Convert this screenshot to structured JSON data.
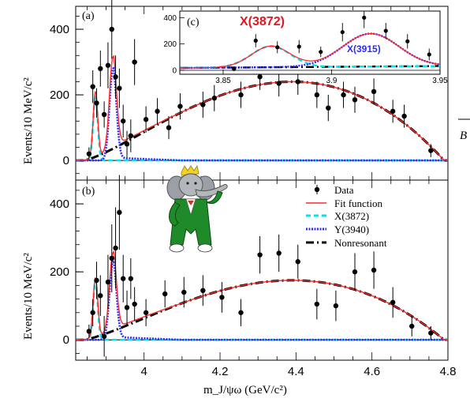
{
  "chart_data": [
    {
      "type": "scatter",
      "panel": "(a)",
      "ylabel": "Events/10 MeV/c²",
      "xlim": [
        3.82,
        4.8
      ],
      "ylim": [
        -60,
        470
      ],
      "yticks": [
        0,
        200,
        400
      ],
      "data_points": [
        {
          "x": 3.855,
          "y": 20,
          "err": 20
        },
        {
          "x": 3.865,
          "y": 225,
          "err": 50
        },
        {
          "x": 3.875,
          "y": 175,
          "err": 45
        },
        {
          "x": 3.885,
          "y": 280,
          "err": 55
        },
        {
          "x": 3.895,
          "y": 140,
          "err": 40
        },
        {
          "x": 3.905,
          "y": 290,
          "err": 70
        },
        {
          "x": 3.915,
          "y": 400,
          "err": 90
        },
        {
          "x": 3.925,
          "y": 255,
          "err": 65
        },
        {
          "x": 3.935,
          "y": 220,
          "err": 60
        },
        {
          "x": 3.945,
          "y": 120,
          "err": 50
        },
        {
          "x": 3.955,
          "y": 50,
          "err": 40
        },
        {
          "x": 3.965,
          "y": 75,
          "err": 50
        },
        {
          "x": 3.975,
          "y": 300,
          "err": 70
        },
        {
          "x": 4.005,
          "y": 125,
          "err": 40
        },
        {
          "x": 4.035,
          "y": 150,
          "err": 40
        },
        {
          "x": 4.065,
          "y": 100,
          "err": 35
        },
        {
          "x": 4.095,
          "y": 165,
          "err": 40
        },
        {
          "x": 4.155,
          "y": 170,
          "err": 40
        },
        {
          "x": 4.185,
          "y": 190,
          "err": 40
        },
        {
          "x": 4.255,
          "y": 200,
          "err": 40
        },
        {
          "x": 4.305,
          "y": 255,
          "err": 40
        },
        {
          "x": 4.355,
          "y": 235,
          "err": 40
        },
        {
          "x": 4.405,
          "y": 240,
          "err": 40
        },
        {
          "x": 4.455,
          "y": 200,
          "err": 40
        },
        {
          "x": 4.485,
          "y": 160,
          "err": 40
        },
        {
          "x": 4.525,
          "y": 200,
          "err": 40
        },
        {
          "x": 4.555,
          "y": 185,
          "err": 40
        },
        {
          "x": 4.605,
          "y": 210,
          "err": 40
        },
        {
          "x": 4.655,
          "y": 150,
          "err": 35
        },
        {
          "x": 4.685,
          "y": 135,
          "err": 35
        },
        {
          "x": 4.755,
          "y": 30,
          "err": 20
        }
      ],
      "model": {
        "nonres_start": 3.84,
        "nonres_end": 4.79,
        "nonres_peak": 240,
        "nonres_peak_x": 4.39,
        "x3872_peak": 200,
        "x3872_mass": 3.872,
        "y3940_peak": 280,
        "y3940_mass": 3.918
      },
      "inset": {
        "label": "(c)",
        "xlim": [
          3.83,
          3.95
        ],
        "ylim": [
          -30,
          450
        ],
        "xticks": [
          "3.85",
          "3.9",
          "3.95"
        ],
        "yticks": [
          0,
          200,
          400
        ],
        "annotation_1": "X(3872)",
        "annotation_2": "X(3915)",
        "data_points": [
          {
            "x": 3.855,
            "y": 10,
            "err": 10
          },
          {
            "x": 3.865,
            "y": 225,
            "err": 50
          },
          {
            "x": 3.875,
            "y": 175,
            "err": 45
          },
          {
            "x": 3.885,
            "y": 180,
            "err": 50
          },
          {
            "x": 3.895,
            "y": 140,
            "err": 40
          },
          {
            "x": 3.905,
            "y": 290,
            "err": 70
          },
          {
            "x": 3.915,
            "y": 400,
            "err": 80
          },
          {
            "x": 3.925,
            "y": 300,
            "err": 60
          },
          {
            "x": 3.935,
            "y": 220,
            "err": 55
          },
          {
            "x": 3.945,
            "y": 120,
            "err": 45
          }
        ]
      }
    },
    {
      "type": "scatter",
      "panel": "(b)",
      "ylabel": "Events/10 MeV/c²",
      "xlabel": "m_J/ψω (GeV/c²)",
      "xlim": [
        3.82,
        4.8
      ],
      "ylim": [
        -60,
        470
      ],
      "xticks": [
        "4",
        "4.2",
        "4.4",
        "4.6",
        "4.8"
      ],
      "yticks": [
        0,
        200,
        400
      ],
      "legend": [
        "Data",
        "Fit function",
        "X(3872)",
        "Y(3940)",
        "Nonresonant"
      ],
      "legend_position": "top-right",
      "data_points": [
        {
          "x": 3.855,
          "y": 25,
          "err": 20
        },
        {
          "x": 3.865,
          "y": 80,
          "err": 40
        },
        {
          "x": 3.875,
          "y": 175,
          "err": 55
        },
        {
          "x": 3.885,
          "y": 130,
          "err": 60
        },
        {
          "x": 3.895,
          "y": 10,
          "err": 60
        },
        {
          "x": 3.905,
          "y": 170,
          "err": 80
        },
        {
          "x": 3.915,
          "y": 240,
          "err": 100
        },
        {
          "x": 3.925,
          "y": 270,
          "err": 120
        },
        {
          "x": 3.935,
          "y": 375,
          "err": 110
        },
        {
          "x": 3.945,
          "y": 180,
          "err": 70
        },
        {
          "x": 3.955,
          "y": 95,
          "err": 50
        },
        {
          "x": 3.965,
          "y": 180,
          "err": 60
        },
        {
          "x": 3.975,
          "y": 105,
          "err": 50
        },
        {
          "x": 4.005,
          "y": 80,
          "err": 40
        },
        {
          "x": 4.055,
          "y": 135,
          "err": 40
        },
        {
          "x": 4.105,
          "y": 140,
          "err": 45
        },
        {
          "x": 4.155,
          "y": 145,
          "err": 45
        },
        {
          "x": 4.205,
          "y": 125,
          "err": 45
        },
        {
          "x": 4.255,
          "y": 80,
          "err": 40
        },
        {
          "x": 4.305,
          "y": 250,
          "err": 55
        },
        {
          "x": 4.355,
          "y": 255,
          "err": 55
        },
        {
          "x": 4.405,
          "y": 230,
          "err": 50
        },
        {
          "x": 4.455,
          "y": 105,
          "err": 45
        },
        {
          "x": 4.505,
          "y": 100,
          "err": 45
        },
        {
          "x": 4.555,
          "y": 200,
          "err": 55
        },
        {
          "x": 4.605,
          "y": 205,
          "err": 55
        },
        {
          "x": 4.655,
          "y": 110,
          "err": 45
        },
        {
          "x": 4.705,
          "y": 40,
          "err": 30
        },
        {
          "x": 4.755,
          "y": 20,
          "err": 20
        }
      ],
      "model": {
        "nonres_start": 3.84,
        "nonres_end": 4.79,
        "nonres_peak": 175,
        "nonres_peak_x": 4.39,
        "x3872_peak": 175,
        "x3872_mass": 3.872,
        "y3940_peak": 230,
        "y3940_mass": 3.918
      }
    }
  ],
  "colors": {
    "fit": "#ff2a2a",
    "x3872": "#00e5ee",
    "y3940": "#2b2bff",
    "nonres": "#000000",
    "annotation_red": "#e8141b",
    "annotation_blue": "#2b2bff",
    "elephant_green": "#1f8a2a",
    "elephant_grey": "#9aa0a6"
  },
  "edge_text": "B"
}
